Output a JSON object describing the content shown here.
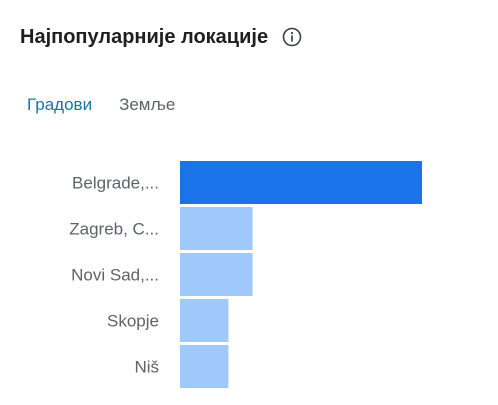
{
  "header": {
    "title": "Најпопуларније локације",
    "info_icon": "info-icon"
  },
  "tabs": [
    {
      "label": "Градови",
      "active": true
    },
    {
      "label": "Земље",
      "active": false
    }
  ],
  "colors": {
    "primary_bar": "#1a73e8",
    "secondary_bar": "#9fc8fb",
    "active_tab": "#1a73a8"
  },
  "chart_data": {
    "type": "bar",
    "orientation": "horizontal",
    "categories": [
      "Belgrade,...",
      "Zagreb, C...",
      "Novi Sad,...",
      "Skopje",
      "Niš"
    ],
    "values": [
      100,
      30,
      30,
      20,
      20
    ],
    "title": "",
    "xlabel": "",
    "ylabel": "",
    "xlim": [
      0,
      100
    ],
    "grid": false
  }
}
